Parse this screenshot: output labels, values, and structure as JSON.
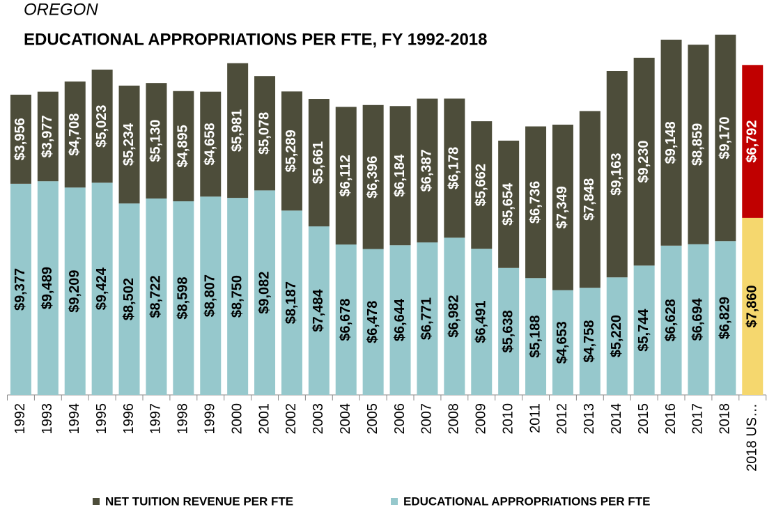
{
  "chart_data": {
    "type": "stacked_bar",
    "subtitle": "OREGON",
    "title": "EDUCATIONAL APPROPRIATIONS PER FTE, FY 1992-2018",
    "categories": [
      "1992",
      "1993",
      "1994",
      "1995",
      "1996",
      "1997",
      "1998",
      "1999",
      "2000",
      "2001",
      "2002",
      "2003",
      "2004",
      "2005",
      "2006",
      "2007",
      "2008",
      "2009",
      "2010",
      "2011",
      "2012",
      "2013",
      "2014",
      "2015",
      "2016",
      "2017",
      "2018",
      "2018 US…"
    ],
    "series": [
      {
        "name": "EDUCATIONAL APPROPRIATIONS PER FTE",
        "color": "#96c8cc",
        "colors": [
          "#96c8cc",
          "#96c8cc",
          "#96c8cc",
          "#96c8cc",
          "#96c8cc",
          "#96c8cc",
          "#96c8cc",
          "#96c8cc",
          "#96c8cc",
          "#96c8cc",
          "#96c8cc",
          "#96c8cc",
          "#96c8cc",
          "#96c8cc",
          "#96c8cc",
          "#96c8cc",
          "#96c8cc",
          "#96c8cc",
          "#96c8cc",
          "#96c8cc",
          "#96c8cc",
          "#96c8cc",
          "#96c8cc",
          "#96c8cc",
          "#96c8cc",
          "#96c8cc",
          "#96c8cc",
          "#f5d76e"
        ],
        "values": [
          9377,
          9489,
          9209,
          9424,
          8502,
          8722,
          8598,
          8807,
          8750,
          9082,
          8187,
          7484,
          6678,
          6478,
          6644,
          6771,
          6982,
          6491,
          5638,
          5188,
          4653,
          4758,
          5220,
          5744,
          6628,
          6694,
          6829,
          7860
        ],
        "value_labels": [
          "$9,377",
          "$9,489",
          "$9,209",
          "$9,424",
          "$8,502",
          "$8,722",
          "$8,598",
          "$8,807",
          "$8,750",
          "$9,082",
          "$8,187",
          "$7,484",
          "$6,678",
          "$6,478",
          "$6,644",
          "$6,771",
          "$6,982",
          "$6,491",
          "$5,638",
          "$5,188",
          "$4,653",
          "$4,758",
          "$5,220",
          "$5,744",
          "$6,628",
          "$6,694",
          "$6,829",
          "$7,860"
        ]
      },
      {
        "name": "NET TUITION REVENUE PER FTE",
        "color": "#4d4d3a",
        "colors": [
          "#4d4d3a",
          "#4d4d3a",
          "#4d4d3a",
          "#4d4d3a",
          "#4d4d3a",
          "#4d4d3a",
          "#4d4d3a",
          "#4d4d3a",
          "#4d4d3a",
          "#4d4d3a",
          "#4d4d3a",
          "#4d4d3a",
          "#4d4d3a",
          "#4d4d3a",
          "#4d4d3a",
          "#4d4d3a",
          "#4d4d3a",
          "#4d4d3a",
          "#4d4d3a",
          "#4d4d3a",
          "#4d4d3a",
          "#4d4d3a",
          "#4d4d3a",
          "#4d4d3a",
          "#4d4d3a",
          "#4d4d3a",
          "#4d4d3a",
          "#c00000"
        ],
        "values": [
          3956,
          3977,
          4708,
          5023,
          5234,
          5130,
          4895,
          4658,
          5981,
          5078,
          5289,
          5661,
          6112,
          6396,
          6184,
          6387,
          6178,
          5662,
          5654,
          6736,
          7349,
          7848,
          9163,
          9230,
          9148,
          8859,
          9170,
          6792
        ],
        "value_labels": [
          "$3,956",
          "$3,977",
          "$4,708",
          "$5,023",
          "$5,234",
          "$5,130",
          "$4,895",
          "$4,658",
          "$5,981",
          "$5,078",
          "$5,289",
          "$5,661",
          "$6,112",
          "$6,396",
          "$6,184",
          "$6,387",
          "$6,178",
          "$5,662",
          "$5,654",
          "$6,736",
          "$7,349",
          "$7,848",
          "$9,163",
          "$9,230",
          "$9,148",
          "$8,859",
          "$9,170",
          "$6,792"
        ]
      }
    ]
  }
}
